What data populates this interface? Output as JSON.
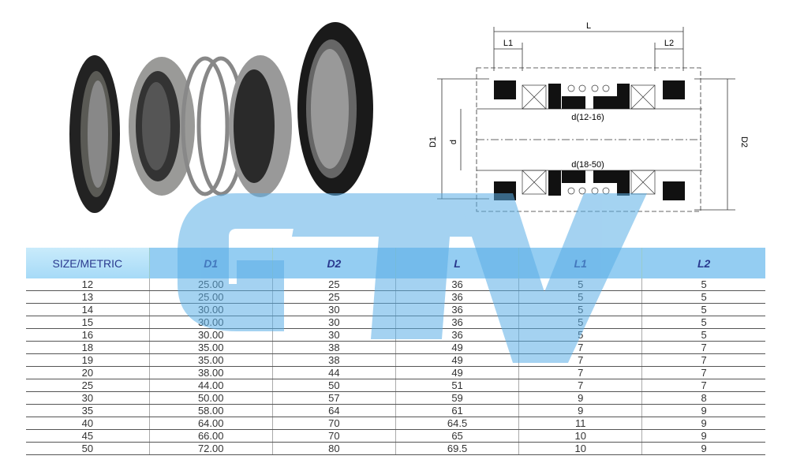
{
  "drawing": {
    "labels": {
      "L": "L",
      "L1": "L1",
      "L2": "L2",
      "D1": "D1",
      "D2": "D2",
      "d": "d",
      "d_small": "d(12-16)",
      "d_large": "d(18-50)"
    }
  },
  "watermark": {
    "text": "GTV",
    "color": "#5aaee6"
  },
  "table": {
    "headers": [
      "SIZE/METRIC",
      "D1",
      "D2",
      "L",
      "L1",
      "L2"
    ],
    "rows": [
      [
        "12",
        "25.00",
        "25",
        "36",
        "5",
        "5"
      ],
      [
        "13",
        "25.00",
        "25",
        "36",
        "5",
        "5"
      ],
      [
        "14",
        "30.00",
        "30",
        "36",
        "5",
        "5"
      ],
      [
        "15",
        "30.00",
        "30",
        "36",
        "5",
        "5"
      ],
      [
        "16",
        "30.00",
        "30",
        "36",
        "5",
        "5"
      ],
      [
        "18",
        "35.00",
        "38",
        "49",
        "7",
        "7"
      ],
      [
        "19",
        "35.00",
        "38",
        "49",
        "7",
        "7"
      ],
      [
        "20",
        "38.00",
        "44",
        "49",
        "7",
        "7"
      ],
      [
        "25",
        "44.00",
        "50",
        "51",
        "7",
        "7"
      ],
      [
        "30",
        "50.00",
        "57",
        "59",
        "9",
        "8"
      ],
      [
        "35",
        "58.00",
        "64",
        "61",
        "9",
        "9"
      ],
      [
        "40",
        "64.00",
        "70",
        "64.5",
        "11",
        "9"
      ],
      [
        "45",
        "66.00",
        "70",
        "65",
        "10",
        "9"
      ],
      [
        "50",
        "72.00",
        "80",
        "69.5",
        "10",
        "9"
      ]
    ]
  }
}
